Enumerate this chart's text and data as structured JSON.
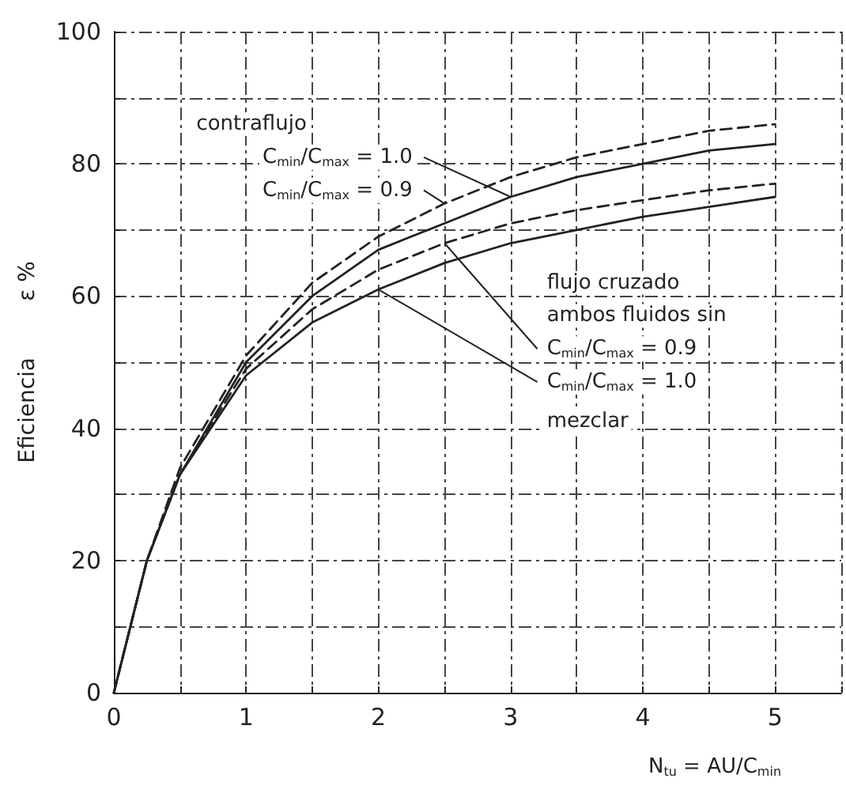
{
  "chart_data": {
    "type": "line",
    "xlabel": "N$_{tu}$ = AU/C$_{min}$",
    "ylabel": "Eficiencia        ε %",
    "x": [
      0,
      0.25,
      0.5,
      1,
      1.5,
      2,
      2.5,
      3,
      3.5,
      4,
      4.5,
      5
    ],
    "series": [
      {
        "color": "#222222",
        "line_style": "dashed",
        "values": [
          0,
          20,
          34,
          51,
          62,
          69,
          74,
          78,
          81,
          83,
          85,
          86
        ]
      },
      {
        "color": "#222222",
        "line_style": "solid",
        "values": [
          0,
          20,
          33,
          50,
          60,
          67,
          71,
          75,
          78,
          80,
          82,
          83
        ]
      },
      {
        "color": "#222222",
        "line_style": "dashed",
        "values": [
          0,
          20,
          33,
          49,
          58,
          64,
          68,
          71,
          73,
          74.5,
          76,
          77
        ]
      },
      {
        "color": "#222222",
        "line_style": "solid",
        "values": [
          0,
          20,
          33,
          48,
          56,
          61,
          65,
          68,
          70,
          72,
          73.5,
          75
        ]
      }
    ],
    "annotations": [
      "contraflujo",
      {
        "text": "C$_{min}$/C$_{max}$ = 1.0",
        "x": 3,
        "y": 75
      },
      {
        "text": "C$_{min}$/C$_{max}$ = 0.9",
        "x": 2.5,
        "y": 74
      },
      "flujo cruzado",
      "ambos fluidos sin",
      {
        "text": "C$_{min}$/C$_{max}$ = 0.9",
        "x": 2.5,
        "y": 68
      },
      {
        "text": "C$_{min}$/C$_{max}$ = 1.0",
        "x": 2,
        "y": 61
      },
      "mezclar"
    ],
    "xlim": [
      0,
      5.5
    ],
    "xticks": [
      0,
      {
        "value": 0.5,
        "label": null
      },
      1,
      {
        "value": 1.5,
        "label": null
      },
      2,
      {
        "value": 2.5,
        "label": null
      },
      3,
      {
        "value": 3.5,
        "label": null
      },
      4,
      {
        "value": 4.5,
        "label": null
      },
      5,
      {
        "value": 5.5,
        "label": null
      }
    ],
    "ylim": [
      0,
      100
    ],
    "yticks": [
      0,
      {
        "value": 10,
        "label": null
      },
      20,
      {
        "value": 30,
        "label": null
      },
      40,
      {
        "value": 50,
        "label": null
      },
      60,
      {
        "value": 70,
        "label": null
      },
      80,
      {
        "value": 90,
        "label": null
      },
      100
    ],
    "grid": true,
    "marker": "none"
  }
}
